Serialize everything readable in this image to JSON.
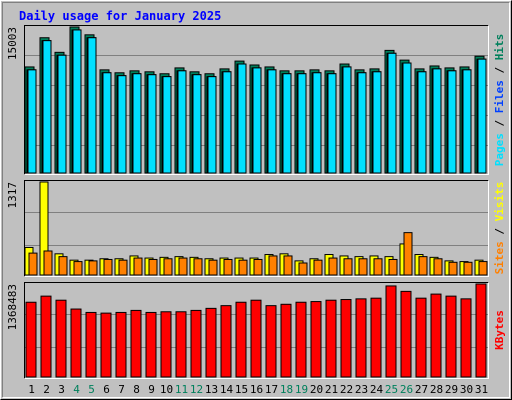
{
  "title": "Daily usage for January 2025",
  "colors": {
    "background": "#C0C0C0",
    "title_text": "#0000FF",
    "hits": "#00805C",
    "files": "#0040FF",
    "pages": "#00E0FF",
    "visits": "#FFFF00",
    "sites": "#FF8000",
    "kbytes": "#FF0000",
    "weekend_label": "#00805C",
    "weekday_label": "#000000"
  },
  "chart_data": [
    {
      "type": "bar",
      "categories": [
        "1",
        "2",
        "3",
        "4",
        "5",
        "6",
        "7",
        "8",
        "9",
        "10",
        "11",
        "12",
        "13",
        "14",
        "15",
        "16",
        "17",
        "18",
        "19",
        "20",
        "21",
        "22",
        "23",
        "24",
        "25",
        "26",
        "27",
        "28",
        "29",
        "30",
        "31"
      ],
      "ymax_label": "15003",
      "ylim": [
        0,
        15003
      ],
      "legend": [
        "Pages",
        "Files",
        "Hits"
      ],
      "series": [
        {
          "name": "Hits",
          "values": [
            10900,
            13900,
            12400,
            15003,
            14200,
            10600,
            10300,
            10500,
            10400,
            10200,
            10800,
            10400,
            10200,
            10700,
            11500,
            11100,
            10900,
            10500,
            10500,
            10600,
            10500,
            11200,
            10600,
            10700,
            12600,
            11600,
            10700,
            11000,
            10800,
            10900,
            12000
          ]
        },
        {
          "name": "Files",
          "values": [
            10600,
            13600,
            12100,
            14700,
            13900,
            10300,
            10000,
            10200,
            10100,
            9900,
            10500,
            10100,
            9900,
            10400,
            11200,
            10800,
            10600,
            10200,
            10200,
            10300,
            10200,
            10900,
            10300,
            10400,
            12300,
            11300,
            10400,
            10700,
            10500,
            10600,
            11700
          ]
        },
        {
          "name": "Pages",
          "values": [
            10600,
            13600,
            12100,
            14700,
            13900,
            10300,
            10000,
            10200,
            10100,
            9900,
            10500,
            10100,
            9900,
            10400,
            11200,
            10800,
            10600,
            10200,
            10200,
            10300,
            10200,
            10900,
            10300,
            10400,
            12300,
            11300,
            10400,
            10700,
            10500,
            10600,
            11700
          ]
        }
      ]
    },
    {
      "type": "bar",
      "categories": [
        "1",
        "2",
        "3",
        "4",
        "5",
        "6",
        "7",
        "8",
        "9",
        "10",
        "11",
        "12",
        "13",
        "14",
        "15",
        "16",
        "17",
        "18",
        "19",
        "20",
        "21",
        "22",
        "23",
        "24",
        "25",
        "26",
        "27",
        "28",
        "29",
        "30",
        "31"
      ],
      "ymax_label": "1317",
      "ylim": [
        0,
        1317
      ],
      "legend": [
        "Sites",
        "Visits"
      ],
      "series": [
        {
          "name": "Visits",
          "values": [
            390,
            1317,
            300,
            210,
            210,
            230,
            230,
            270,
            240,
            250,
            260,
            250,
            230,
            240,
            240,
            240,
            290,
            300,
            200,
            230,
            290,
            270,
            260,
            270,
            260,
            440,
            290,
            250,
            200,
            190,
            210
          ]
        },
        {
          "name": "Sites",
          "values": [
            310,
            340,
            260,
            190,
            200,
            220,
            210,
            240,
            220,
            230,
            240,
            230,
            210,
            220,
            210,
            220,
            270,
            270,
            170,
            210,
            240,
            230,
            230,
            230,
            220,
            600,
            260,
            230,
            180,
            180,
            190
          ]
        }
      ]
    },
    {
      "type": "bar",
      "categories": [
        "1",
        "2",
        "3",
        "4",
        "5",
        "6",
        "7",
        "8",
        "9",
        "10",
        "11",
        "12",
        "13",
        "14",
        "15",
        "16",
        "17",
        "18",
        "19",
        "20",
        "21",
        "22",
        "23",
        "24",
        "25",
        "26",
        "27",
        "28",
        "29",
        "30",
        "31"
      ],
      "ymax_label": "1368483",
      "ylim": [
        0,
        1368483
      ],
      "legend": [
        "KBytes"
      ],
      "series": [
        {
          "name": "KBytes",
          "values": [
            1100000,
            1190000,
            1130000,
            1000000,
            950000,
            940000,
            950000,
            980000,
            950000,
            960000,
            960000,
            980000,
            1010000,
            1050000,
            1100000,
            1130000,
            1050000,
            1070000,
            1100000,
            1110000,
            1130000,
            1140000,
            1150000,
            1160000,
            1340000,
            1260000,
            1160000,
            1220000,
            1190000,
            1150000,
            1368483
          ]
        }
      ]
    }
  ],
  "weekend_days": [
    "4",
    "5",
    "11",
    "12",
    "18",
    "19",
    "25",
    "26"
  ]
}
